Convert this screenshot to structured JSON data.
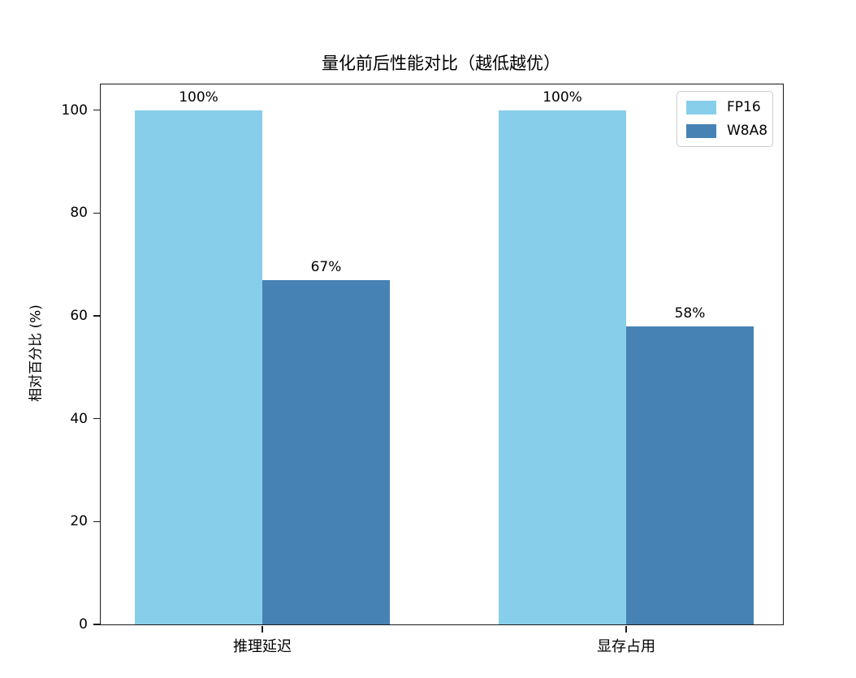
{
  "chart_data": {
    "type": "bar",
    "title": "量化前后性能对比（越低越优）",
    "ylabel": "相对百分比 (%)",
    "categories": [
      "推理延迟",
      "显存占用"
    ],
    "series": [
      {
        "name": "FP16",
        "color": "#87CEEB",
        "values": [
          100,
          100
        ],
        "bar_labels": [
          "100%",
          "100%"
        ]
      },
      {
        "name": "W8A8",
        "color": "#4682B4",
        "values": [
          67,
          58
        ],
        "bar_labels": [
          "67%",
          "58%"
        ]
      }
    ],
    "yticks": [
      0,
      20,
      40,
      60,
      80,
      100
    ],
    "ylim": [
      0,
      105
    ],
    "grid": false,
    "legend_position": "upper-right"
  }
}
